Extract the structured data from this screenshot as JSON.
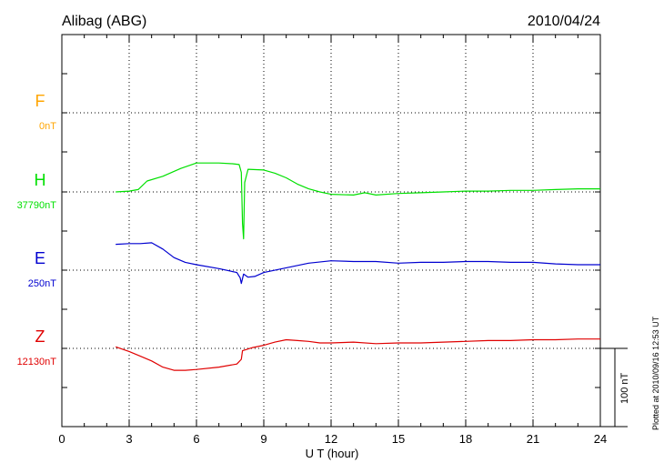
{
  "chart_data": {
    "type": "line",
    "title_station": "Alibag (ABG)",
    "title_date": "2010/04/24",
    "xlabel": "U T (hour)",
    "xlim": [
      0,
      24
    ],
    "xticks": [
      "0",
      "3",
      "6",
      "9",
      "12",
      "15",
      "18",
      "21",
      "24"
    ],
    "scale_bar_label": "100 nT",
    "scale_bar_nT": 100,
    "footer_note": "Plotted at 2010/09/16 12:53 UT",
    "components": [
      {
        "name": "F",
        "baseline_label": "0nT",
        "color": "#ffa500",
        "baseline_nT": 0,
        "points": []
      },
      {
        "name": "H",
        "baseline_label": "37790nT",
        "color": "#00e000",
        "baseline_nT": 37790,
        "points": [
          [
            2.4,
            0
          ],
          [
            3.0,
            1
          ],
          [
            3.4,
            3
          ],
          [
            3.8,
            14
          ],
          [
            4.5,
            20
          ],
          [
            5.3,
            30
          ],
          [
            6.0,
            37
          ],
          [
            7.0,
            37
          ],
          [
            7.6,
            36
          ],
          [
            7.9,
            35
          ],
          [
            8.0,
            25
          ],
          [
            8.05,
            -40
          ],
          [
            8.1,
            -60
          ],
          [
            8.15,
            12
          ],
          [
            8.3,
            29
          ],
          [
            9.0,
            28
          ],
          [
            9.5,
            24
          ],
          [
            10.0,
            18
          ],
          [
            10.5,
            10
          ],
          [
            11.0,
            4
          ],
          [
            11.5,
            0
          ],
          [
            12.0,
            -3
          ],
          [
            13.0,
            -4
          ],
          [
            13.5,
            -1
          ],
          [
            14.0,
            -4
          ],
          [
            15.0,
            -2
          ],
          [
            16.0,
            -1
          ],
          [
            17.0,
            0
          ],
          [
            18.0,
            1
          ],
          [
            19.0,
            1
          ],
          [
            20.0,
            2
          ],
          [
            21.0,
            2
          ],
          [
            22.0,
            3
          ],
          [
            23.0,
            4
          ],
          [
            24.0,
            4
          ]
        ]
      },
      {
        "name": "E",
        "baseline_label": "250nT",
        "color": "#0000d0",
        "baseline_nT": 250,
        "points": [
          [
            2.4,
            33
          ],
          [
            3.0,
            34
          ],
          [
            3.5,
            34
          ],
          [
            4.0,
            35
          ],
          [
            4.5,
            27
          ],
          [
            5.0,
            16
          ],
          [
            5.5,
            10
          ],
          [
            6.0,
            7
          ],
          [
            7.0,
            2
          ],
          [
            7.8,
            -3
          ],
          [
            7.95,
            -10
          ],
          [
            8.0,
            -17
          ],
          [
            8.1,
            -5
          ],
          [
            8.3,
            -9
          ],
          [
            8.6,
            -8
          ],
          [
            9.0,
            -3
          ],
          [
            10.0,
            3
          ],
          [
            11.0,
            9
          ],
          [
            12.0,
            12
          ],
          [
            13.0,
            11
          ],
          [
            14.0,
            11
          ],
          [
            15.0,
            9
          ],
          [
            16.0,
            10
          ],
          [
            17.0,
            10
          ],
          [
            18.0,
            11
          ],
          [
            19.0,
            11
          ],
          [
            20.0,
            10
          ],
          [
            21.0,
            10
          ],
          [
            22.0,
            8
          ],
          [
            23.0,
            7
          ],
          [
            24.0,
            7
          ]
        ]
      },
      {
        "name": "Z",
        "baseline_label": "12130nT",
        "color": "#e00000",
        "baseline_nT": 12130,
        "points": [
          [
            2.4,
            2
          ],
          [
            3.0,
            -4
          ],
          [
            3.5,
            -10
          ],
          [
            4.0,
            -16
          ],
          [
            4.5,
            -24
          ],
          [
            5.0,
            -28
          ],
          [
            5.5,
            -28
          ],
          [
            6.0,
            -27
          ],
          [
            7.0,
            -24
          ],
          [
            7.8,
            -20
          ],
          [
            8.0,
            -14
          ],
          [
            8.05,
            -3
          ],
          [
            8.5,
            1
          ],
          [
            9.0,
            4
          ],
          [
            9.5,
            8
          ],
          [
            10.0,
            11
          ],
          [
            10.5,
            10
          ],
          [
            11.0,
            9
          ],
          [
            11.5,
            7
          ],
          [
            12.0,
            7
          ],
          [
            13.0,
            8
          ],
          [
            14.0,
            6
          ],
          [
            15.0,
            7
          ],
          [
            16.0,
            7
          ],
          [
            17.0,
            8
          ],
          [
            18.0,
            9
          ],
          [
            19.0,
            10
          ],
          [
            20.0,
            10
          ],
          [
            21.0,
            11
          ],
          [
            22.0,
            11
          ],
          [
            23.0,
            12
          ],
          [
            24.0,
            12
          ]
        ]
      }
    ]
  }
}
